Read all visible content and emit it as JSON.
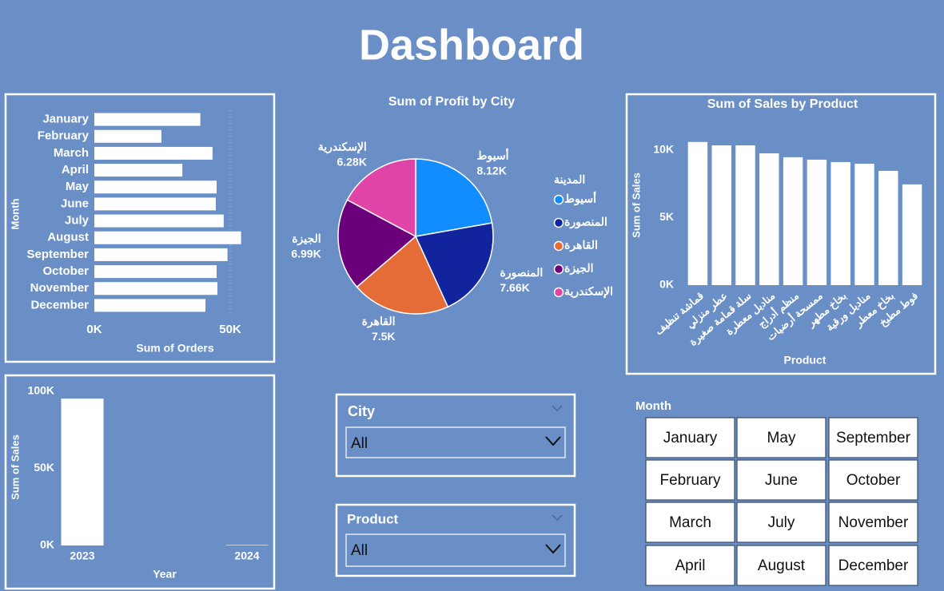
{
  "title": "Dashboard",
  "chart_data": [
    {
      "type": "hbar",
      "y_label": "Month",
      "x_label": "Sum of Orders",
      "categories": [
        "January",
        "February",
        "March",
        "April",
        "May",
        "June",
        "July",
        "August",
        "September",
        "October",
        "November",
        "December"
      ],
      "values": [
        39000,
        24700,
        43500,
        32400,
        45000,
        44700,
        47600,
        54000,
        49000,
        45000,
        45300,
        40900
      ],
      "color": "#ffffff",
      "xlim": [
        0,
        62000
      ],
      "xticks": [
        {
          "value": 0,
          "label": "0K"
        },
        {
          "value": 50000,
          "label": "50K"
        }
      ],
      "grid": true
    },
    {
      "type": "pie",
      "title": "Sum of Profit by City",
      "legend_title": "المدينة",
      "categories": [
        "أسيوط",
        "المنصورة",
        "القاهرة",
        "الجيزة",
        "الإسكندرية"
      ],
      "values": [
        8120,
        7660,
        7500,
        6990,
        6280
      ],
      "value_labels": [
        "8.12K",
        "7.66K",
        "7.5K",
        "6.99K",
        "6.28K"
      ],
      "colors": [
        "#118dff",
        "#12239e",
        "#e66c37",
        "#6b007b",
        "#e044a7"
      ]
    },
    {
      "type": "bar",
      "title": "Sum of Sales by Product",
      "x_label": "Product",
      "y_label": "Sum of Sales",
      "categories": [
        "قماشة تنظيف",
        "عطر منزلي",
        "سلة قمامة صغيرة",
        "مناديل معطرة",
        "منظم أدراج",
        "ممسحة أرضيات",
        "بخاخ مطهر",
        "مناديل ورقية",
        "بخاخ معطر",
        "فوط مطبخ"
      ],
      "values": [
        10600,
        10350,
        10350,
        9760,
        9470,
        9290,
        9110,
        8990,
        8460,
        7460
      ],
      "color": "#ffffff",
      "ylim": [
        0,
        11000
      ],
      "yticks": [
        {
          "value": 0,
          "label": "0K"
        },
        {
          "value": 5000,
          "label": "5K"
        },
        {
          "value": 10000,
          "label": "10K"
        }
      ]
    },
    {
      "type": "bar",
      "x_label": "Year",
      "y_label": "Sum of Sales",
      "categories": [
        "2023",
        "2024"
      ],
      "values": [
        95300,
        300
      ],
      "color": "#ffffff",
      "ylim": [
        0,
        100000
      ],
      "yticks": [
        {
          "value": 0,
          "label": "0K"
        },
        {
          "value": 50000,
          "label": "50K"
        },
        {
          "value": 100000,
          "label": "100K"
        }
      ]
    }
  ],
  "slicers": {
    "city": {
      "label": "City",
      "value": "All"
    },
    "product": {
      "label": "Product",
      "value": "All"
    },
    "month": {
      "label": "Month",
      "options": [
        "January",
        "February",
        "March",
        "April",
        "May",
        "June",
        "July",
        "August",
        "September",
        "October",
        "November",
        "December"
      ]
    }
  }
}
